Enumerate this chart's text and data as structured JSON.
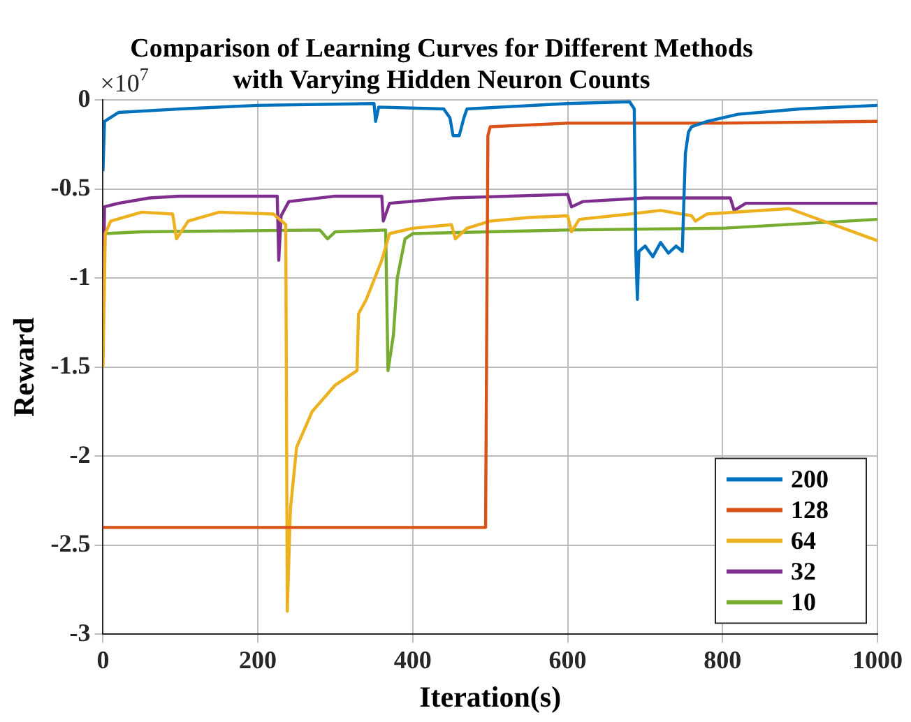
{
  "chart_data": {
    "type": "line",
    "title": "Comparison of Learning Curves for Different Methods\nwith Varying Hidden Neuron Counts",
    "xlabel": "Iteration(s)",
    "ylabel": "Reward",
    "annotations": [
      "×10$^{7}$"
    ],
    "xlim": [
      0,
      1000
    ],
    "xticks": [
      0,
      200,
      400,
      600,
      800,
      1000
    ],
    "ylim": [
      -3,
      0
    ],
    "yticks": [
      -3,
      -2.5,
      -2,
      -1.5,
      -1,
      -0.5,
      0
    ],
    "grid": true,
    "legend": "bottom right",
    "marker": "none",
    "line_style": "solid",
    "series": [
      {
        "name": "200",
        "color": "#0072bd",
        "x": [
          0,
          2,
          20,
          100,
          200,
          350,
          352,
          356,
          440,
          448,
          452,
          460,
          466,
          470,
          600,
          680,
          686,
          688,
          690,
          692,
          700,
          710,
          720,
          730,
          740,
          748,
          752,
          756,
          760,
          780,
          820,
          900,
          1000
        ],
        "values": [
          -0.4,
          -0.12,
          -0.07,
          -0.05,
          -0.03,
          -0.02,
          -0.12,
          -0.04,
          -0.05,
          -0.1,
          -0.2,
          -0.2,
          -0.1,
          -0.05,
          -0.02,
          -0.01,
          -0.05,
          -0.85,
          -1.12,
          -0.85,
          -0.82,
          -0.88,
          -0.8,
          -0.86,
          -0.82,
          -0.85,
          -0.3,
          -0.18,
          -0.15,
          -0.12,
          -0.08,
          -0.05,
          -0.03
        ]
      },
      {
        "name": "128",
        "color": "#d95319",
        "x": [
          0,
          494,
          497,
          500,
          600,
          800,
          1000
        ],
        "values": [
          -2.4,
          -2.4,
          -0.2,
          -0.15,
          -0.13,
          -0.13,
          -0.12
        ]
      },
      {
        "name": "64",
        "color": "#edb120",
        "x": [
          0,
          3,
          10,
          50,
          90,
          95,
          110,
          150,
          220,
          236,
          238,
          242,
          250,
          270,
          300,
          328,
          330,
          340,
          360,
          370,
          400,
          450,
          455,
          470,
          500,
          550,
          600,
          605,
          615,
          680,
          720,
          760,
          765,
          780,
          886,
          1000
        ],
        "values": [
          -1.5,
          -0.75,
          -0.68,
          -0.63,
          -0.64,
          -0.78,
          -0.68,
          -0.63,
          -0.64,
          -0.7,
          -2.87,
          -2.3,
          -1.95,
          -1.75,
          -1.6,
          -1.52,
          -1.2,
          -1.12,
          -0.9,
          -0.75,
          -0.72,
          -0.7,
          -0.78,
          -0.72,
          -0.68,
          -0.66,
          -0.65,
          -0.74,
          -0.67,
          -0.64,
          -0.62,
          -0.65,
          -0.68,
          -0.64,
          -0.61,
          -0.79
        ]
      },
      {
        "name": "32",
        "color": "#7e2f8e",
        "x": [
          0,
          2,
          20,
          60,
          100,
          225,
          227,
          230,
          240,
          300,
          360,
          362,
          370,
          450,
          600,
          605,
          620,
          700,
          810,
          815,
          830,
          1000
        ],
        "values": [
          -1.2,
          -0.6,
          -0.58,
          -0.55,
          -0.54,
          -0.54,
          -0.9,
          -0.65,
          -0.57,
          -0.54,
          -0.54,
          -0.68,
          -0.58,
          -0.55,
          -0.53,
          -0.6,
          -0.57,
          -0.55,
          -0.55,
          -0.62,
          -0.58,
          -0.58
        ]
      },
      {
        "name": "10",
        "color": "#77ac30",
        "x": [
          0,
          2,
          50,
          280,
          290,
          300,
          365,
          368,
          375,
          380,
          390,
          400,
          600,
          800,
          1000
        ],
        "values": [
          -1.07,
          -0.75,
          -0.74,
          -0.73,
          -0.78,
          -0.74,
          -0.73,
          -1.52,
          -1.32,
          -1.0,
          -0.78,
          -0.75,
          -0.73,
          -0.72,
          -0.67
        ]
      }
    ]
  }
}
